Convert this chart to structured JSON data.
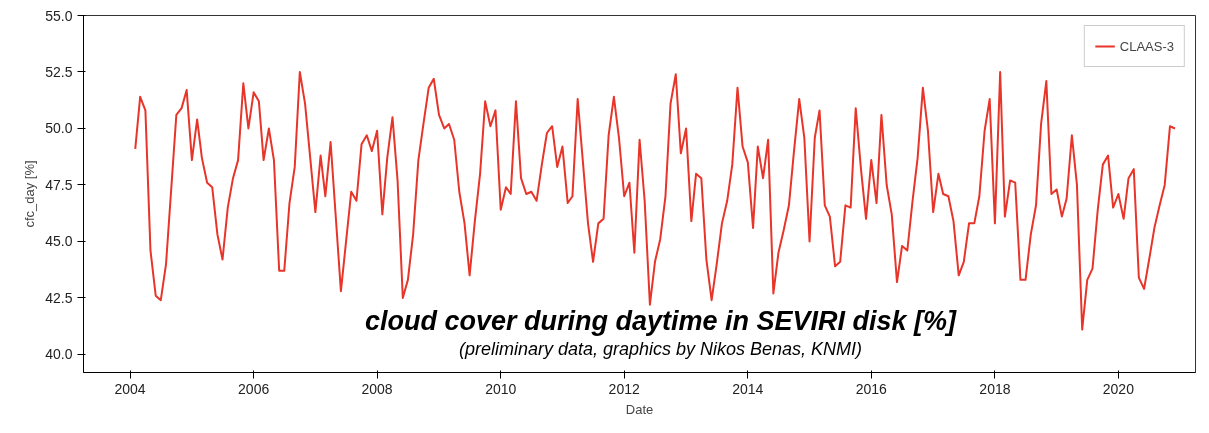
{
  "chart_data": {
    "type": "line",
    "title": "cloud cover during daytime in SEVIRI disk [%]",
    "subtitle": "(preliminary data, graphics by Nikos Benas, KNMI)",
    "xlabel": "Date",
    "ylabel": "cfc_day [%]",
    "x": [
      "2004-02",
      "2004-03",
      "2004-04",
      "2004-05",
      "2004-06",
      "2004-07",
      "2004-08",
      "2004-10",
      "2004-11",
      "2004-12",
      "2005-01",
      "2005-02",
      "2005-03",
      "2005-04",
      "2005-05",
      "2005-06",
      "2005-07",
      "2005-08",
      "2005-09",
      "2005-10",
      "2005-11",
      "2005-12",
      "2006-01",
      "2006-02",
      "2006-03",
      "2006-04",
      "2006-05",
      "2006-06",
      "2006-07",
      "2006-08",
      "2006-09",
      "2006-10",
      "2006-11",
      "2007-01",
      "2007-02",
      "2007-03",
      "2007-04",
      "2007-06",
      "2007-08",
      "2007-09",
      "2007-10",
      "2007-11",
      "2007-12",
      "2008-01",
      "2008-02",
      "2008-03",
      "2008-04",
      "2008-05",
      "2008-06",
      "2008-07",
      "2008-08",
      "2008-09",
      "2008-10",
      "2008-11",
      "2008-12",
      "2009-01",
      "2009-02",
      "2009-03",
      "2009-04",
      "2009-05",
      "2009-06",
      "2009-07",
      "2009-08",
      "2009-09",
      "2009-10",
      "2009-11",
      "2009-12",
      "2010-01",
      "2010-02",
      "2010-03",
      "2010-04",
      "2010-05",
      "2010-06",
      "2010-07",
      "2010-08",
      "2010-09",
      "2010-10",
      "2010-11",
      "2010-12",
      "2011-01",
      "2011-02",
      "2011-03",
      "2011-04",
      "2011-05",
      "2011-06",
      "2011-07",
      "2011-08",
      "2011-09",
      "2011-10",
      "2011-11",
      "2011-12",
      "2012-01",
      "2012-02",
      "2012-03",
      "2012-04",
      "2012-05",
      "2012-06",
      "2012-07",
      "2012-08",
      "2012-09",
      "2012-10",
      "2012-11",
      "2012-12",
      "2013-01",
      "2013-02",
      "2013-03",
      "2013-04",
      "2013-05",
      "2013-06",
      "2013-07",
      "2013-08",
      "2013-09",
      "2013-10",
      "2013-11",
      "2013-12",
      "2014-01",
      "2014-02",
      "2014-03",
      "2014-04",
      "2014-05",
      "2014-06",
      "2014-07",
      "2014-08",
      "2014-09",
      "2014-10",
      "2014-11",
      "2014-12",
      "2015-01",
      "2015-02",
      "2015-03",
      "2015-04",
      "2015-05",
      "2015-06",
      "2015-07",
      "2015-08",
      "2015-09",
      "2015-10",
      "2015-11",
      "2015-12",
      "2016-01",
      "2016-02",
      "2016-03",
      "2016-04",
      "2016-05",
      "2016-06",
      "2016-07",
      "2016-08",
      "2016-09",
      "2016-10",
      "2016-11",
      "2016-12",
      "2017-01",
      "2017-02",
      "2017-03",
      "2017-04",
      "2017-05",
      "2017-06",
      "2017-07",
      "2017-08",
      "2017-09",
      "2017-10",
      "2017-11",
      "2017-12",
      "2018-01",
      "2018-02",
      "2018-03",
      "2018-04",
      "2018-05",
      "2018-06",
      "2018-07",
      "2018-08",
      "2018-09",
      "2018-10",
      "2018-11",
      "2018-12",
      "2019-01",
      "2019-02",
      "2019-03",
      "2019-04",
      "2019-05",
      "2019-06",
      "2019-07",
      "2019-08",
      "2019-09",
      "2019-10",
      "2019-11",
      "2019-12",
      "2020-01",
      "2020-02",
      "2020-03",
      "2020-04",
      "2020-05",
      "2020-06",
      "2020-07",
      "2020-08",
      "2020-09",
      "2020-10",
      "2020-11",
      "2020-12"
    ],
    "series": [
      {
        "name": "CLAAS-3",
        "color": "#e8352a",
        "values": [
          49.1,
          51.4,
          50.8,
          44.6,
          42.6,
          42.4,
          44.0,
          50.6,
          50.9,
          51.7,
          48.6,
          50.4,
          48.7,
          47.6,
          47.4,
          45.3,
          44.2,
          46.5,
          47.8,
          48.6,
          52.0,
          50.0,
          51.6,
          51.2,
          48.6,
          50.0,
          48.6,
          43.7,
          43.7,
          46.7,
          48.3,
          52.5,
          51.1,
          46.3,
          48.8,
          47.0,
          49.4,
          42.8,
          47.2,
          46.8,
          49.3,
          49.7,
          49.0,
          49.9,
          46.2,
          48.7,
          50.5,
          47.7,
          42.5,
          43.3,
          45.3,
          48.6,
          50.2,
          51.8,
          52.2,
          50.6,
          50.0,
          50.2,
          49.5,
          47.2,
          45.8,
          43.5,
          45.9,
          48.0,
          51.2,
          50.1,
          50.8,
          46.4,
          47.4,
          47.1,
          51.2,
          47.8,
          47.1,
          47.2,
          46.8,
          48.4,
          49.8,
          50.1,
          48.3,
          49.2,
          46.7,
          47.0,
          51.3,
          48.6,
          45.8,
          44.1,
          45.8,
          46.0,
          49.7,
          51.4,
          49.6,
          47.0,
          47.6,
          44.5,
          49.5,
          46.8,
          42.2,
          44.1,
          45.1,
          47.0,
          51.1,
          52.4,
          48.9,
          50.0,
          45.9,
          48.0,
          47.8,
          44.2,
          42.4,
          44.0,
          45.8,
          46.8,
          48.4,
          51.8,
          49.2,
          48.5,
          45.6,
          49.2,
          47.8,
          49.5,
          42.7,
          44.5,
          45.5,
          46.6,
          49.0,
          51.3,
          49.6,
          45.0,
          49.6,
          50.8,
          46.6,
          46.1,
          43.9,
          44.1,
          46.6,
          46.5,
          50.9,
          48.2,
          46.0,
          48.6,
          46.7,
          50.6,
          47.5,
          46.2,
          43.2,
          44.8,
          44.6,
          46.8,
          48.7,
          51.8,
          49.9,
          46.3,
          48.0,
          47.1,
          47.0,
          45.9,
          43.5,
          44.1,
          45.8,
          45.8,
          47.0,
          49.9,
          51.3,
          45.8,
          52.5,
          46.1,
          47.7,
          47.6,
          43.3,
          43.3,
          45.3,
          46.6,
          50.2,
          52.1,
          47.1,
          47.3,
          46.1,
          46.9,
          49.7,
          47.5,
          41.1,
          43.3,
          43.8,
          46.4,
          48.4,
          48.8,
          46.5,
          47.1,
          46.0,
          47.8,
          48.2,
          43.4,
          42.9,
          44.2,
          45.6,
          46.6,
          47.5,
          50.1,
          50.0
        ]
      }
    ],
    "xlim": [
      "2003-04",
      "2021-04"
    ],
    "ylim": [
      39.2,
      55.0
    ],
    "xticks": [
      "2004",
      "2006",
      "2008",
      "2010",
      "2012",
      "2014",
      "2016",
      "2018",
      "2020"
    ],
    "yticks": [
      {
        "value": 40,
        "label": "40.0"
      },
      {
        "value": 42.5,
        "label": "42.5"
      },
      {
        "value": 45,
        "label": "45.0"
      },
      {
        "value": 47.5,
        "label": "47.5"
      },
      {
        "value": 50,
        "label": "50.0"
      },
      {
        "value": 52.5,
        "label": "52.5"
      },
      {
        "value": 55,
        "label": "55.0"
      }
    ],
    "grid": false,
    "legend": "top right",
    "line_style": "solid"
  }
}
